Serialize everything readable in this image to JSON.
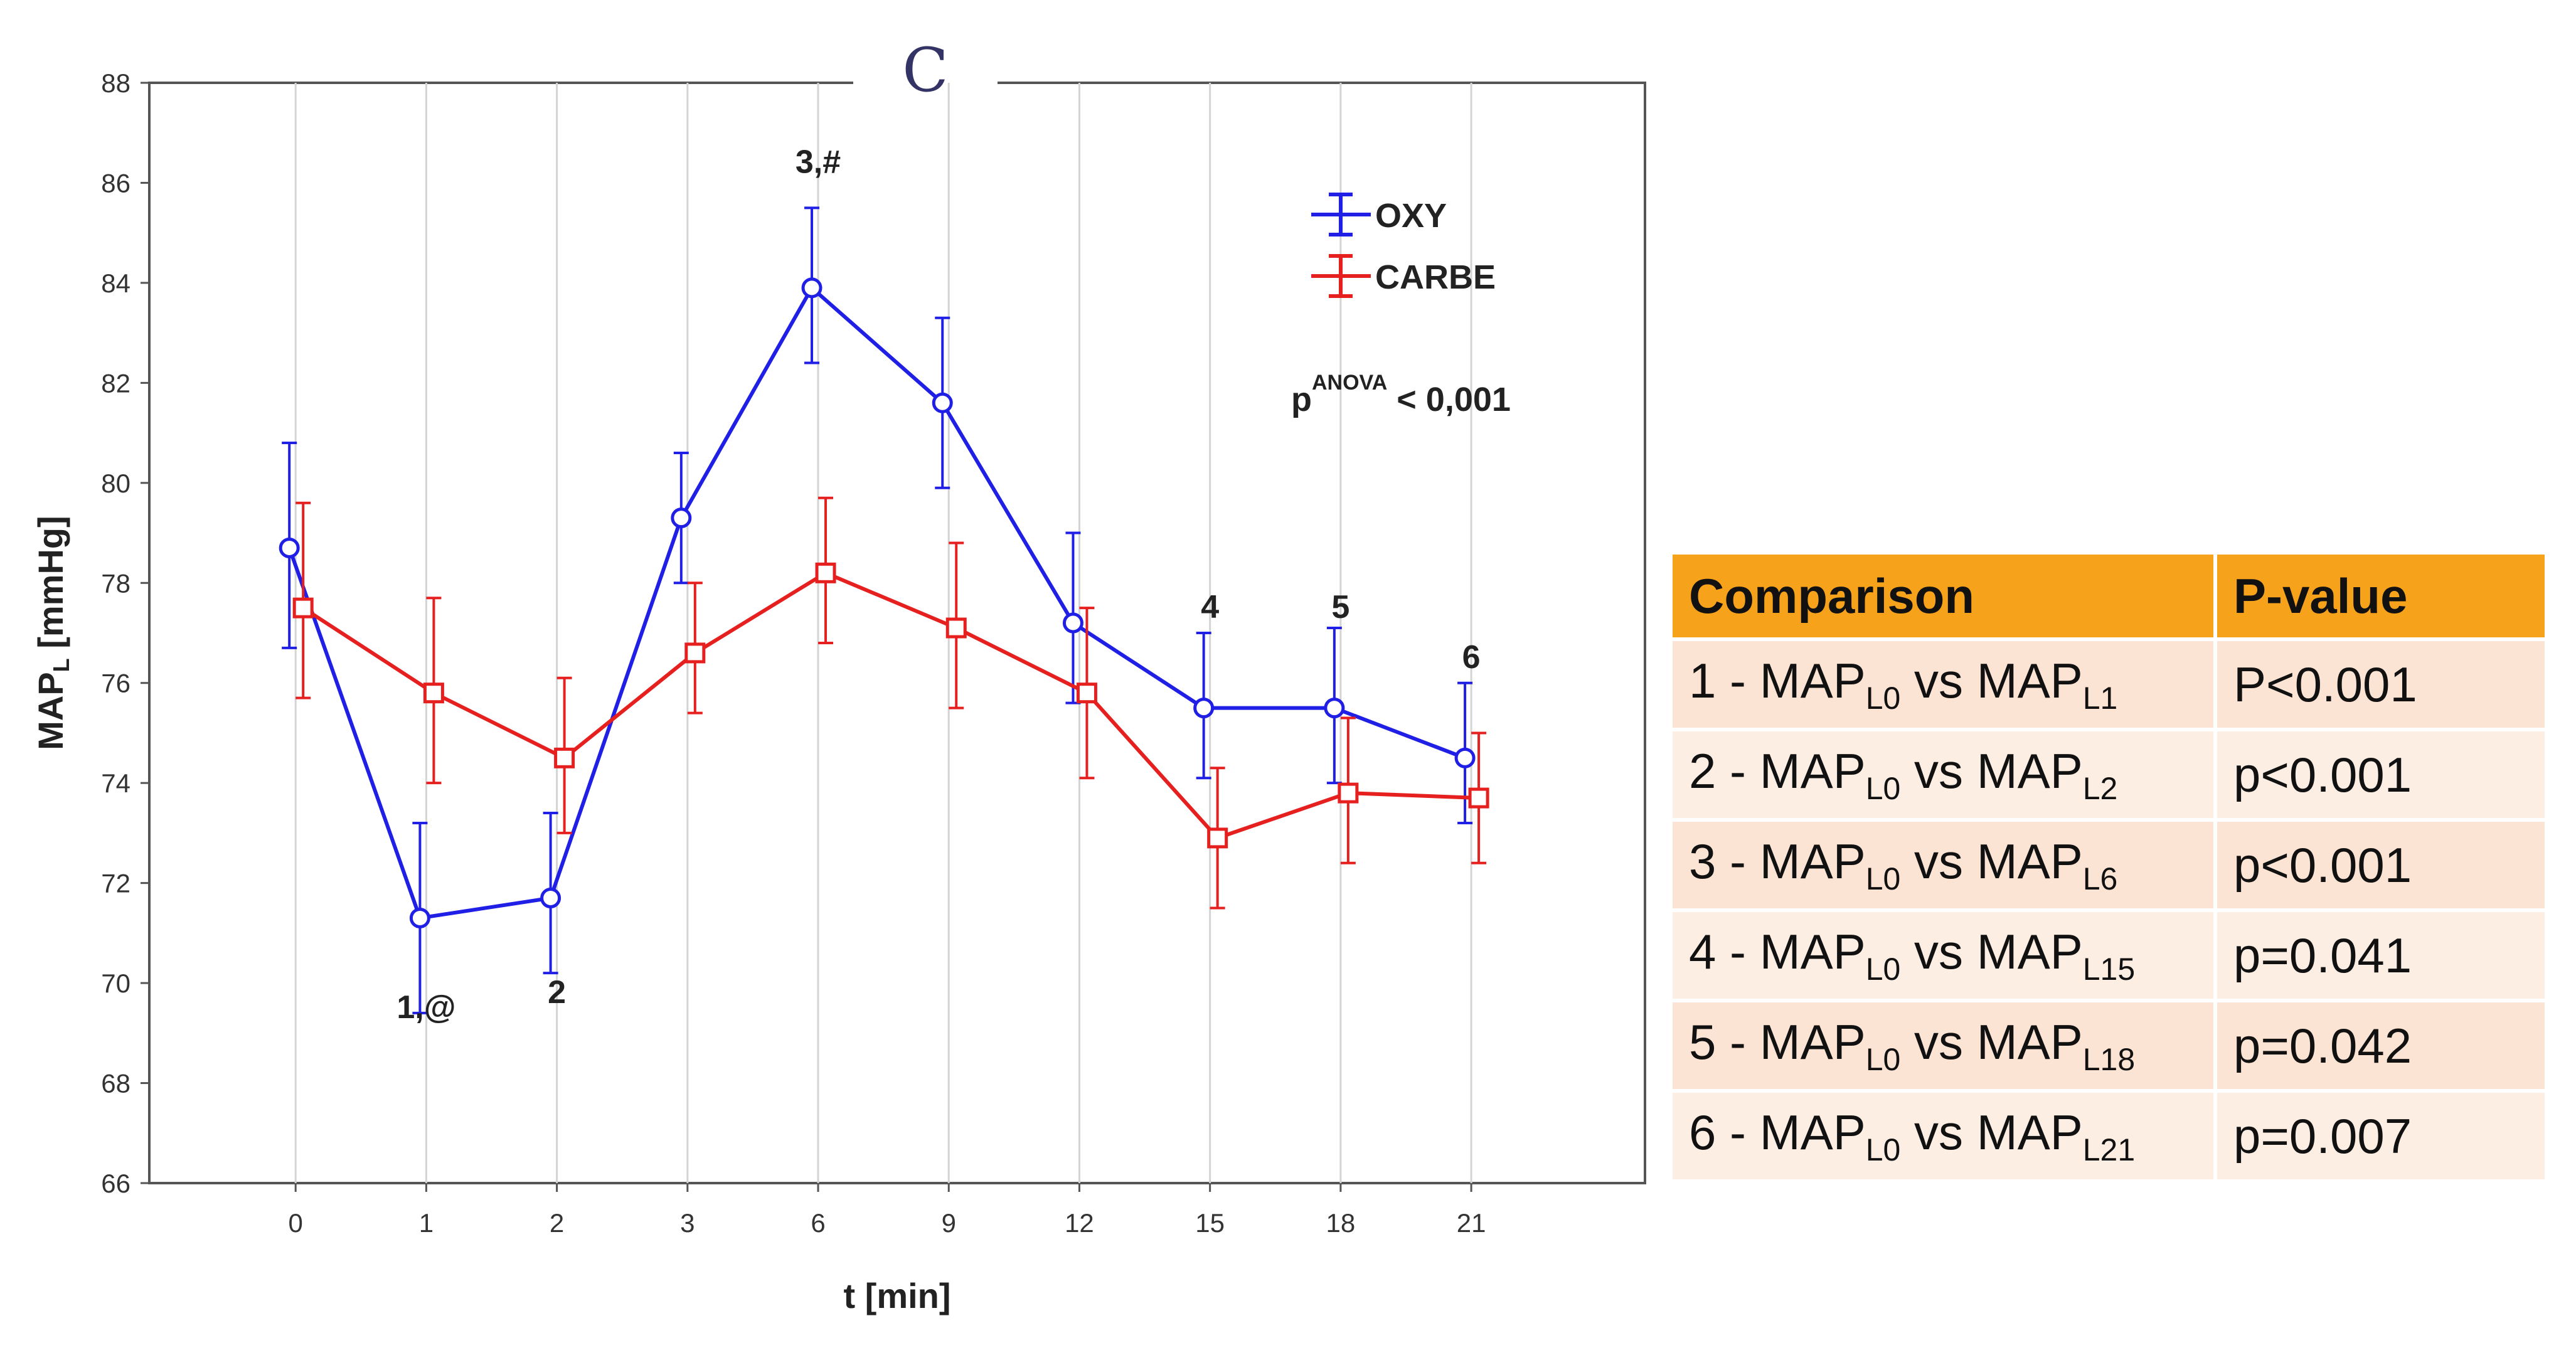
{
  "chart_data": {
    "type": "line",
    "panel_label": "C",
    "xlabel": "t [min]",
    "ylabel": "MAP",
    "ylabel_sub": "L",
    "ylabel_unit": " [mmHg]",
    "categories": [
      "0",
      "1",
      "2",
      "3",
      "6",
      "9",
      "12",
      "15",
      "18",
      "21"
    ],
    "ylim": [
      66,
      88
    ],
    "yticks": [
      "66",
      "68",
      "70",
      "72",
      "74",
      "76",
      "78",
      "80",
      "82",
      "84",
      "86",
      "88"
    ],
    "series": [
      {
        "name": "OXY",
        "color": "#1f1fe6",
        "marker": "circle",
        "values": [
          78.7,
          71.3,
          71.7,
          79.3,
          83.9,
          81.6,
          77.2,
          75.5,
          75.5,
          74.5
        ],
        "upper": [
          80.8,
          73.2,
          73.4,
          80.6,
          85.5,
          83.3,
          79.0,
          77.0,
          77.1,
          76.0
        ],
        "lower": [
          76.7,
          69.4,
          70.2,
          78.0,
          82.4,
          79.9,
          75.6,
          74.1,
          74.0,
          73.2
        ]
      },
      {
        "name": "CARBE",
        "color": "#e61f1f",
        "marker": "square",
        "values": [
          77.5,
          75.8,
          74.5,
          76.6,
          78.2,
          77.1,
          75.8,
          72.9,
          73.8,
          73.7
        ],
        "upper": [
          79.6,
          77.7,
          76.1,
          78.0,
          79.7,
          78.8,
          77.5,
          74.3,
          75.3,
          75.0
        ],
        "lower": [
          75.7,
          74.0,
          73.0,
          75.4,
          76.8,
          75.5,
          74.1,
          71.5,
          72.4,
          72.4
        ]
      }
    ],
    "annotations": [
      {
        "text": "1,@",
        "category": "1",
        "y": 69.3
      },
      {
        "text": "2",
        "category": "2",
        "y": 69.6
      },
      {
        "text": "3,#",
        "category": "6",
        "y": 86.2
      },
      {
        "text": "4",
        "category": "15",
        "y": 77.3
      },
      {
        "text": "5",
        "category": "18",
        "y": 77.3
      },
      {
        "text": "6",
        "category": "21",
        "y": 76.3
      }
    ],
    "stat_text": {
      "p": "p",
      "sup": "ANOVA",
      "rest": " < 0,001"
    },
    "legend_position": "top-right"
  },
  "table": {
    "headers": [
      "Comparison",
      "P-value"
    ],
    "rows": [
      {
        "num": "1",
        "lhs": "MAP",
        "lhs_sub": "L0",
        "vs": "vs",
        "rhs": "MAP",
        "rhs_sub": "L1",
        "p": "P<0.001"
      },
      {
        "num": "2",
        "lhs": "MAP",
        "lhs_sub": "L0",
        "vs": "vs",
        "rhs": "MAP",
        "rhs_sub": "L2",
        "p": "p<0.001"
      },
      {
        "num": "3",
        "lhs": "MAP",
        "lhs_sub": "L0",
        "vs": "vs",
        "rhs": "MAP",
        "rhs_sub": "L6",
        "p": "p<0.001"
      },
      {
        "num": "4",
        "lhs": "MAP",
        "lhs_sub": "L0",
        "vs": "vs",
        "rhs": "MAP",
        "rhs_sub": "L15",
        "p": "p=0.041"
      },
      {
        "num": "5",
        "lhs": "MAP",
        "lhs_sub": "L0",
        "vs": "vs",
        "rhs": "MAP",
        "rhs_sub": "L18",
        "p": "p=0.042"
      },
      {
        "num": "6",
        "lhs": "MAP",
        "lhs_sub": "L0",
        "vs": "vs",
        "rhs": "MAP",
        "rhs_sub": "L21",
        "p": "p=0.007"
      }
    ]
  }
}
